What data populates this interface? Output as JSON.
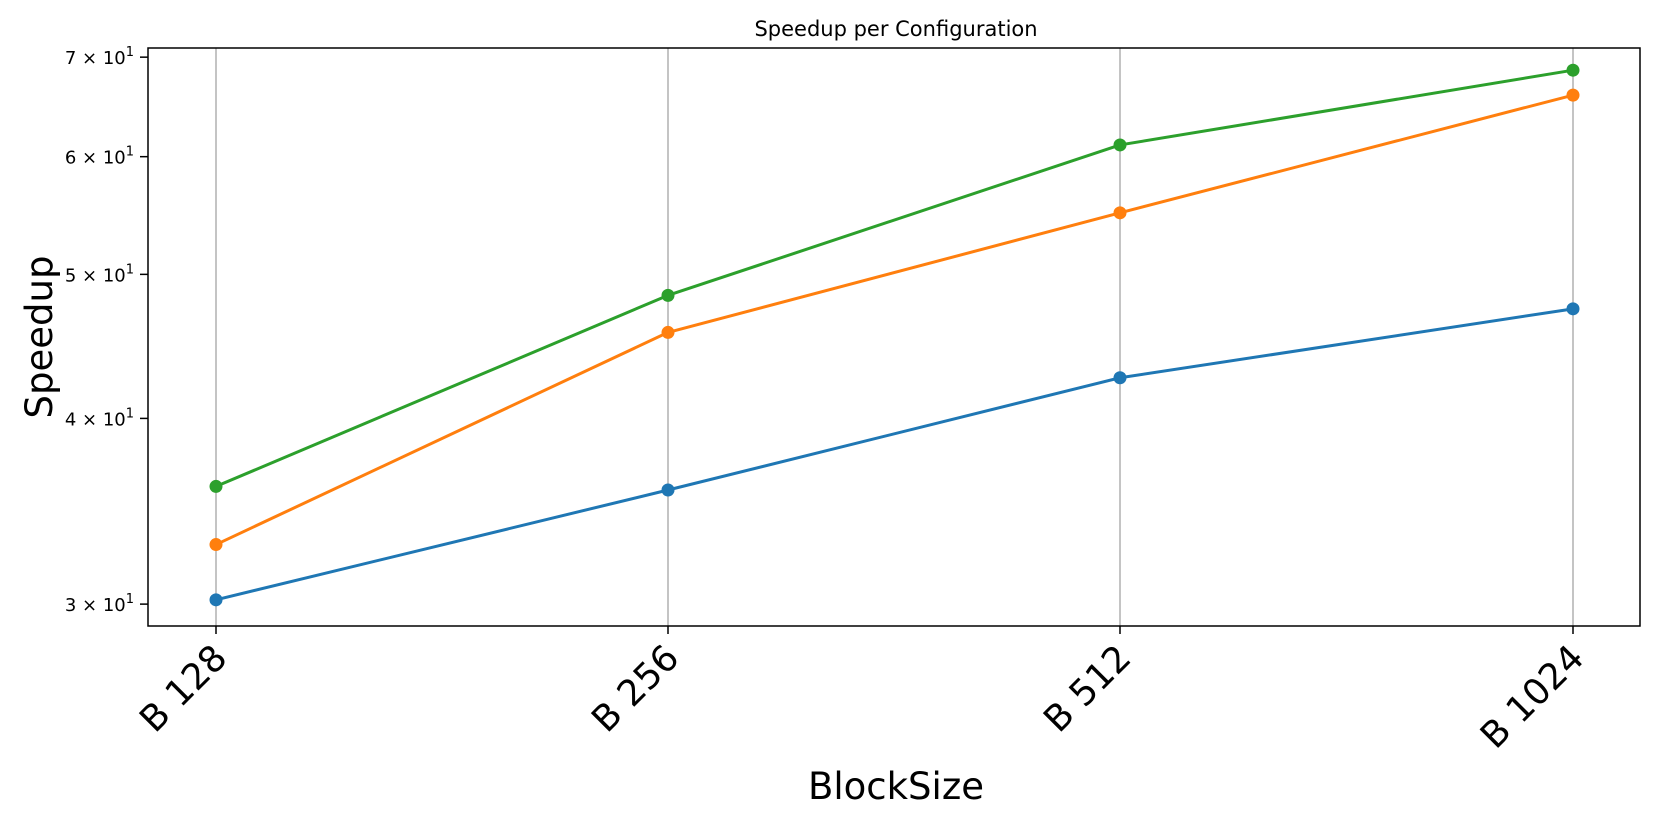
{
  "chart_data": {
    "type": "line",
    "title": "Speedup per Configuration",
    "xlabel": "BlockSize",
    "ylabel": "Speedup",
    "categories": [
      "B 128",
      "B 256",
      "B 512",
      "B 1024"
    ],
    "yscale": "log",
    "ylim": [
      29,
      71
    ],
    "yticks": [
      {
        "value": 30,
        "mantissa": "3",
        "base": "10",
        "exp": "1"
      },
      {
        "value": 40,
        "mantissa": "4",
        "base": "10",
        "exp": "1"
      },
      {
        "value": 50,
        "mantissa": "5",
        "base": "10",
        "exp": "1"
      },
      {
        "value": 60,
        "mantissa": "6",
        "base": "10",
        "exp": "1"
      },
      {
        "value": 70,
        "mantissa": "7",
        "base": "10",
        "exp": "1"
      }
    ],
    "grid": "x-major",
    "legend": "none",
    "series": [
      {
        "color": "#1f77b4",
        "values": [
          30.2,
          35.8,
          42.6,
          47.4
        ]
      },
      {
        "color": "#ff7f0e",
        "values": [
          32.9,
          45.7,
          55.0,
          66.0
        ]
      },
      {
        "color": "#2ca02c",
        "values": [
          36.0,
          48.4,
          61.1,
          68.6
        ]
      }
    ]
  }
}
